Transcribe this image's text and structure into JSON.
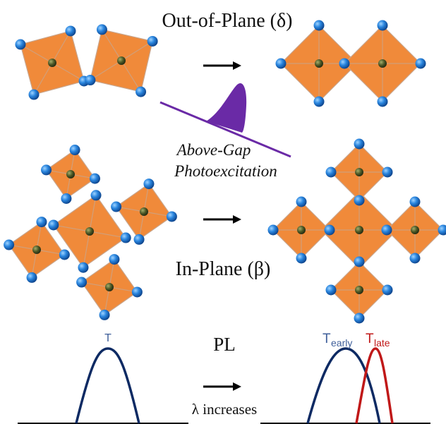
{
  "labels": {
    "out_of_plane": "Out-of-Plane (δ)",
    "above_gap_line1": "Above-Gap",
    "above_gap_line2": "Photoexcitation",
    "in_plane": "In-Plane (β)",
    "pl": "PL",
    "lambda_increases": "λ increases",
    "t_label": "T",
    "t_early_main": "T",
    "t_early_sub": "early",
    "t_late_main": "T",
    "t_late_sub": "late"
  },
  "colors": {
    "octahedron_fill": "#f08a3a",
    "octahedron_edge": "#c9a48a",
    "vertex_atom": "#1a6fc9",
    "center_atom": "#3e4a1e",
    "pump_line": "#6a2aa6",
    "pump_pulse": "#6a2aa6",
    "curve_t": "#0d2a63",
    "curve_t_late": "#c01818",
    "label_t": "#3f5f9a",
    "label_t_late": "#c01818",
    "text": "#111111",
    "arrow": "#000000"
  },
  "icons": {
    "arrow": "right-arrow-icon",
    "pulse": "laser-pulse-icon"
  }
}
